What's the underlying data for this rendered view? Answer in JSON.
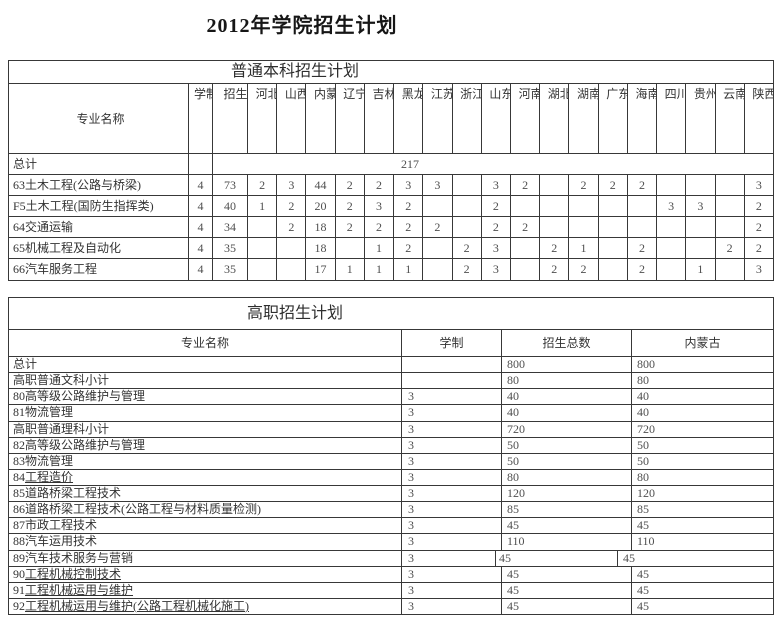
{
  "page": {
    "title": "2012年学院招生计划"
  },
  "table1": {
    "title": "普通本科招生计划",
    "col_headers": {
      "major": "专业名称",
      "duration": "学制",
      "total": "招生总数"
    },
    "provinces": [
      "河北",
      "山西",
      "内蒙古",
      "辽宁",
      "吉林",
      "黑龙江",
      "江苏",
      "浙江",
      "山东",
      "河南",
      "湖北",
      "湖南",
      "广东",
      "海南",
      "四川",
      "贵州",
      "云南",
      "陕西"
    ],
    "total_row": {
      "label": "总计",
      "value": "217"
    },
    "rows": [
      {
        "major": "63土木工程(公路与桥梁)",
        "duration": "4",
        "total": "73",
        "values": [
          "2",
          "3",
          "44",
          "2",
          "2",
          "3",
          "3",
          "",
          "3",
          "2",
          "",
          "2",
          "2",
          "2",
          "",
          "",
          "",
          "3"
        ]
      },
      {
        "major": "F5土木工程(国防生指挥类)",
        "duration": "4",
        "total": "40",
        "values": [
          "1",
          "2",
          "20",
          "2",
          "3",
          "2",
          "",
          "",
          "2",
          "",
          "",
          "",
          "",
          "",
          "3",
          "3",
          "",
          "2"
        ]
      },
      {
        "major": "64交通运输",
        "duration": "4",
        "total": "34",
        "values": [
          "",
          "2",
          "18",
          "2",
          "2",
          "2",
          "2",
          "",
          "2",
          "2",
          "",
          "",
          "",
          "",
          "",
          "",
          "",
          "2"
        ]
      },
      {
        "major": "65机械工程及自动化",
        "duration": "4",
        "total": "35",
        "values": [
          "",
          "",
          "18",
          "",
          "1",
          "2",
          "",
          "2",
          "3",
          "",
          "2",
          "1",
          "",
          "2",
          "",
          "",
          "2",
          "2"
        ]
      },
      {
        "major": "66汽车服务工程",
        "duration": "4",
        "total": "35",
        "values": [
          "",
          "",
          "17",
          "1",
          "1",
          "1",
          "",
          "2",
          "3",
          "",
          "2",
          "2",
          "",
          "2",
          "",
          "1",
          "",
          "3"
        ]
      }
    ]
  },
  "table2": {
    "title": "高职招生计划",
    "col_headers": {
      "major": "专业名称",
      "duration": "学制",
      "total": "招生总数",
      "region": "内蒙古"
    },
    "rows": [
      {
        "code": "",
        "name": "总计",
        "duration": "",
        "total": "800",
        "region": "800",
        "underline": false
      },
      {
        "code": "",
        "name": "高职普通文科小计",
        "duration": "",
        "total": "80",
        "region": "80",
        "underline": false
      },
      {
        "code": "80",
        "name": "高等级公路维护与管理",
        "duration": "3",
        "total": "40",
        "region": "40",
        "underline": false
      },
      {
        "code": "81",
        "name": "物流管理",
        "duration": "3",
        "total": "40",
        "region": "40",
        "underline": false
      },
      {
        "code": "",
        "name": "高职普通理科小计",
        "duration": "3",
        "total": "720",
        "region": "720",
        "underline": false
      },
      {
        "code": "82",
        "name": "高等级公路维护与管理",
        "duration": "3",
        "total": "50",
        "region": "50",
        "underline": false
      },
      {
        "code": "83",
        "name": "物流管理",
        "duration": "3",
        "total": "50",
        "region": "50",
        "underline": false
      },
      {
        "code": "84",
        "name": "工程造价",
        "duration": "3",
        "total": "80",
        "region": "80",
        "underline": true
      },
      {
        "code": "85",
        "name": "道路桥梁工程技术",
        "duration": "3",
        "total": "120",
        "region": "120",
        "underline": false
      },
      {
        "code": "86",
        "name": "道路桥梁工程技术(公路工程与材料质量检测)",
        "duration": "3",
        "total": "85",
        "region": "85",
        "underline": false
      },
      {
        "code": "87",
        "name": "市政工程技术",
        "duration": "3",
        "total": "45",
        "region": "45",
        "underline": false
      },
      {
        "code": "88",
        "name": "汽车运用技术",
        "duration": "3",
        "total": "110",
        "region": "110",
        "underline": false
      },
      {
        "code": "89",
        "name": "汽车技术服务与营销",
        "duration": "3",
        "total": "45",
        "region": "45",
        "underline": false
      },
      {
        "code": "90",
        "name": "工程机械控制技术",
        "duration": "3",
        "total": "45",
        "region": "45",
        "underline": true
      },
      {
        "code": "91",
        "name": "工程机械运用与维护",
        "duration": "3",
        "total": "45",
        "region": "45",
        "underline": true
      },
      {
        "code": "92",
        "name": "工程机械运用与维护(公路工程机械化施工)",
        "duration": "3",
        "total": "45",
        "region": "45",
        "underline": true
      }
    ]
  }
}
